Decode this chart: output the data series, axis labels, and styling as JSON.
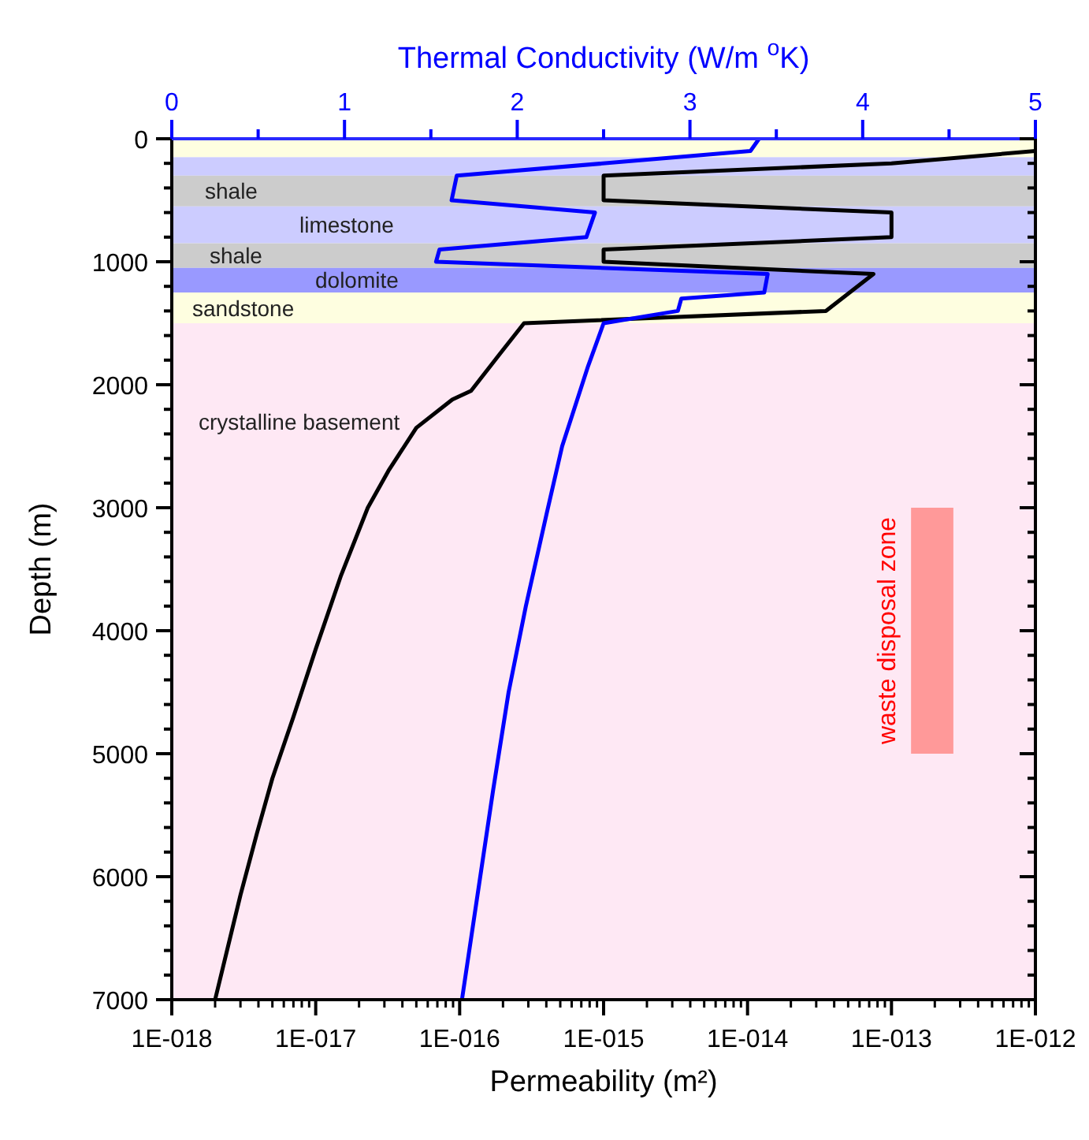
{
  "chart_data": {
    "type": "line",
    "xlabel": "Permeability (m²)",
    "x2label": "Thermal Conductivity (W/m $^{o}$K)",
    "ylabel": "Depth (m)",
    "log": "x",
    "xlim": [
      1e-18,
      1e-12
    ],
    "xticks": [
      {
        "value": 1e-18,
        "label": "1E-018"
      },
      {
        "value": 1e-17,
        "label": "1E-017"
      },
      {
        "value": 1e-16,
        "label": "1E-016"
      },
      {
        "value": 1e-15,
        "label": "1E-015"
      },
      {
        "value": 1e-14,
        "label": "1E-014"
      },
      {
        "value": 1e-13,
        "label": "1E-013"
      },
      {
        "value": 1e-12,
        "label": "1E-012"
      }
    ],
    "x2lim": [
      0,
      5
    ],
    "x2ticks": [
      0,
      {
        "value": 0.5,
        "label": null
      },
      1,
      {
        "value": 1.5,
        "label": null
      },
      2,
      {
        "value": 2.5,
        "label": null
      },
      3,
      {
        "value": 3.5,
        "label": null
      },
      4,
      {
        "value": 4.5,
        "label": null
      },
      5
    ],
    "ylim": [
      7000,
      0
    ],
    "yticks": [
      0,
      1000,
      2000,
      3000,
      4000,
      5000,
      6000,
      7000
    ],
    "grid": false,
    "marker": "none",
    "line_style": "solid",
    "series": [
      {
        "color": "#000000",
        "x": [
          1e-12,
          1e-13,
          1e-15,
          1e-15,
          1e-13,
          1e-13,
          1e-15,
          1e-15,
          7.5e-14,
          3.5e-14,
          2.8e-16,
          1.9e-16,
          1.2e-16,
          8.9e-17,
          5e-17,
          3.2e-17,
          2.3e-17,
          1.5e-17,
          1e-17,
          7e-18,
          5e-18,
          3.9e-18,
          3e-18,
          2e-18
        ],
        "values": [
          100,
          200,
          300,
          500,
          600,
          800,
          900,
          1000,
          1100,
          1400,
          1500,
          1750,
          2050,
          2120,
          2350,
          2700,
          3000,
          3550,
          4150,
          4700,
          5200,
          5650,
          6150,
          7000
        ]
      },
      {
        "color": "#0000ff",
        "axis": "x2",
        "x": [
          3.4,
          3.35,
          1.65,
          1.62,
          2.45,
          2.4,
          1.55,
          1.53,
          3.45,
          3.43,
          2.95,
          2.93,
          2.5,
          2.41,
          2.26,
          2.17,
          2.05,
          1.95,
          1.86,
          1.77,
          1.68
        ],
        "values": [
          0,
          100,
          300,
          500,
          600,
          800,
          900,
          1000,
          1100,
          1250,
          1300,
          1400,
          1500,
          1850,
          2500,
          3050,
          3800,
          4500,
          5300,
          6150,
          7000
        ]
      }
    ],
    "bands": [
      {
        "axis": "y",
        "from": 0,
        "to": 150,
        "label": null,
        "color": "#fefee0"
      },
      {
        "axis": "y",
        "from": 150,
        "to": 300,
        "label": null,
        "color": "#ccccff"
      },
      {
        "axis": "y",
        "from": 300,
        "to": 550,
        "label": "shale",
        "color": "#cccccc"
      },
      {
        "axis": "y",
        "from": 550,
        "to": 850,
        "label": "limestone",
        "color": "#ccccff"
      },
      {
        "axis": "y",
        "from": 850,
        "to": 1050,
        "label": "shale",
        "color": "#cccccc"
      },
      {
        "axis": "y",
        "from": 1050,
        "to": 1250,
        "label": "dolomite",
        "color": "#9999ff"
      },
      {
        "axis": "y",
        "from": 1250,
        "to": 1500,
        "label": "sandstone",
        "color": "#fefee0"
      },
      {
        "axis": "y",
        "from": 1500,
        "to": 7000,
        "label": "crystalline basement",
        "color": "#fee8f4"
      },
      {
        "axis": "y",
        "from": 3000,
        "to": 5000,
        "label": "waste disposal zone",
        "color": "#ff9999"
      }
    ]
  }
}
